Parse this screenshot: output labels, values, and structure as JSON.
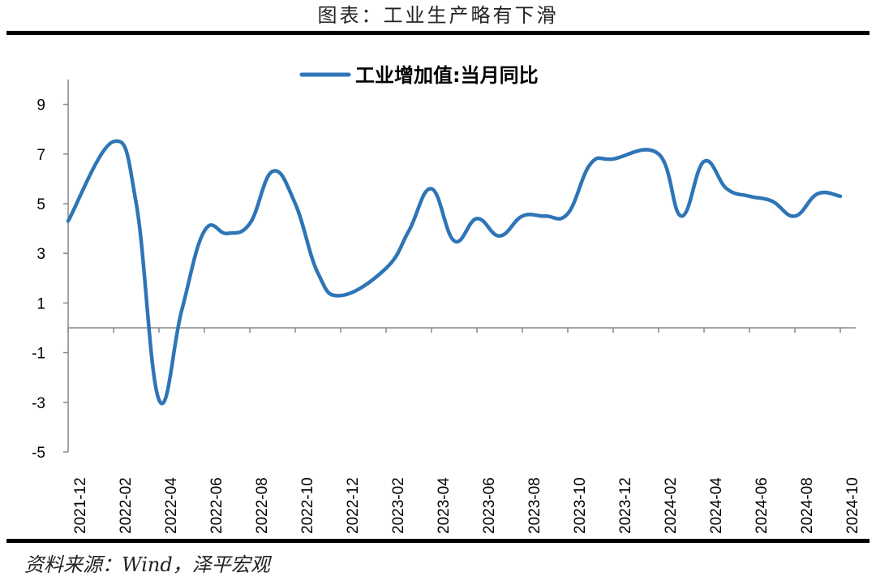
{
  "header": {
    "title": "图表：工业生产略有下滑"
  },
  "footer": {
    "source": "资料来源：Wind，泽平宏观"
  },
  "colors": {
    "line": "#2e75b6",
    "axis": "#888888",
    "rule": "#000000"
  },
  "chart_data": {
    "type": "line",
    "title": "",
    "xlabel": "",
    "ylabel": "",
    "ylim": [
      -5,
      10
    ],
    "yticks": [
      9,
      7,
      5,
      3,
      1,
      -1,
      -3,
      -5
    ],
    "grid": false,
    "legend_position": "top-center",
    "x_tick_labels": [
      "2021-12",
      "2022-02",
      "2022-04",
      "2022-06",
      "2022-08",
      "2022-10",
      "2022-12",
      "2023-02",
      "2023-04",
      "2023-06",
      "2023-08",
      "2023-10",
      "2023-12",
      "2024-02",
      "2024-04",
      "2024-06",
      "2024-08",
      "2024-10"
    ],
    "series": [
      {
        "name": "工业增加值:当月同比",
        "x": [
          "2021-12",
          "2022-02",
          "2022-03",
          "2022-04",
          "2022-05",
          "2022-06",
          "2022-07",
          "2022-08",
          "2022-09",
          "2022-10",
          "2022-11",
          "2022-12",
          "2023-02",
          "2023-03",
          "2023-04",
          "2023-05",
          "2023-06",
          "2023-07",
          "2023-08",
          "2023-09",
          "2023-10",
          "2023-11",
          "2023-12",
          "2024-02",
          "2024-03",
          "2024-04",
          "2024-05",
          "2024-06",
          "2024-07",
          "2024-08",
          "2024-09",
          "2024-10"
        ],
        "values": [
          4.3,
          7.5,
          5.0,
          -2.9,
          0.7,
          3.9,
          3.8,
          4.2,
          6.3,
          5.0,
          2.2,
          1.3,
          2.4,
          3.9,
          5.6,
          3.5,
          4.4,
          3.7,
          4.5,
          4.5,
          4.6,
          6.6,
          6.8,
          7.0,
          4.5,
          6.7,
          5.6,
          5.3,
          5.1,
          4.5,
          5.4,
          5.3
        ]
      }
    ]
  }
}
